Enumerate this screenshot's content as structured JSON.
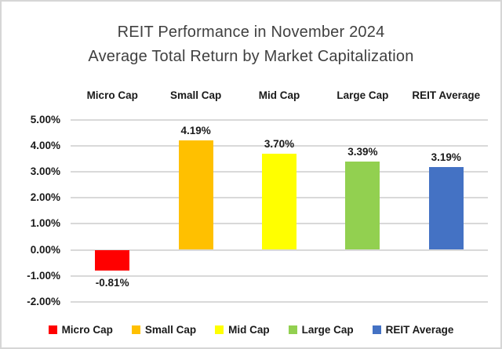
{
  "chart_data": {
    "type": "bar",
    "title": "REIT Performance in November 2024",
    "subtitle": "Average Total Return by Market Capitalization",
    "categories": [
      "Micro Cap",
      "Small Cap",
      "Mid Cap",
      "Large Cap",
      "REIT Average"
    ],
    "values": [
      -0.81,
      4.19,
      3.7,
      3.39,
      3.19
    ],
    "value_labels": [
      "-0.81%",
      "4.19%",
      "3.70%",
      "3.39%",
      "3.19%"
    ],
    "bar_colors": [
      "#FF0000",
      "#FFC000",
      "#FFFF00",
      "#92D050",
      "#4472C4"
    ],
    "xlabel": "",
    "ylabel": "",
    "ylim": [
      -2,
      5
    ],
    "ytick_step": 1,
    "yticks": [
      5,
      4,
      3,
      2,
      1,
      0,
      -1,
      -2
    ],
    "ytick_labels": [
      "5.00%",
      "4.00%",
      "3.00%",
      "2.00%",
      "1.00%",
      "0.00%",
      "-1.00%",
      "-2.00%"
    ],
    "grid": true,
    "category_axis_position": "top",
    "legend_position": "bottom",
    "legend": [
      {
        "label": "Micro Cap",
        "color": "#FF0000"
      },
      {
        "label": "Small Cap",
        "color": "#FFC000"
      },
      {
        "label": "Mid Cap",
        "color": "#FFFF00"
      },
      {
        "label": "Large Cap",
        "color": "#92D050"
      },
      {
        "label": "REIT Average",
        "color": "#4472C4"
      }
    ]
  },
  "colors": {
    "title_text": "#404040",
    "axis_text": "#1A1A1A",
    "gridline": "#D9D9D9",
    "background": "#FFFFFF",
    "frame_border": "#D6D6D6"
  }
}
